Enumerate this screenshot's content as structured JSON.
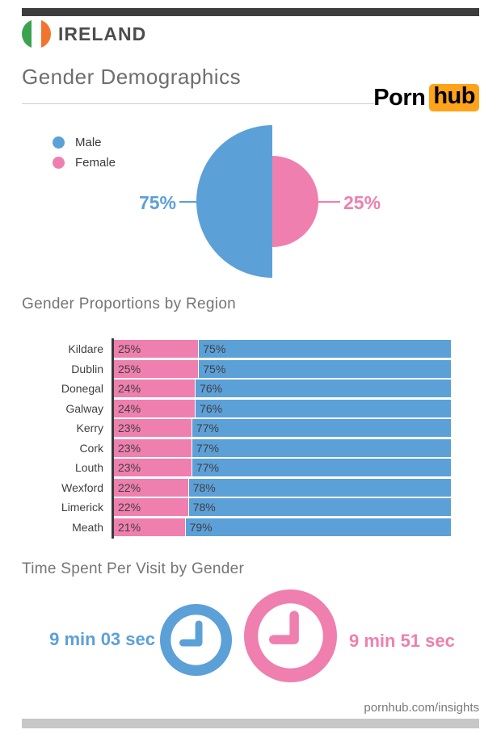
{
  "header": {
    "country": "IRELAND",
    "title": "Gender Demographics",
    "brand": {
      "word1": "Porn",
      "word2": "hub",
      "accent_color": "#FFA31A"
    },
    "flag_colors": [
      "#3DA24E",
      "#FFFFFF",
      "#F1752F"
    ]
  },
  "colors": {
    "male_blue": "#5CA0D8",
    "female_pink": "#EF7FAE",
    "top_bar": "#3D3D3D",
    "bottom_bar": "#C7C7C7",
    "heading_gray": "#757575",
    "text_gray": "#3F3F3F"
  },
  "pie_section": {
    "legend": [
      {
        "label": "Male",
        "color": "#5CA0D8"
      },
      {
        "label": "Female",
        "color": "#EF7FAE"
      }
    ],
    "male_callout": "75%",
    "female_callout": "25%"
  },
  "regions_section": {
    "heading": "Gender Proportions by Region"
  },
  "time_section": {
    "heading": "Time Spent Per Visit by Gender",
    "male_time": "9 min 03 sec",
    "female_time": "9 min 51 sec"
  },
  "footer": {
    "url": "pornhub.com/insights"
  },
  "chart_data": [
    {
      "type": "pie",
      "title": "Gender Demographics",
      "labels": [
        "Male",
        "Female"
      ],
      "values": [
        75,
        25
      ],
      "unit": "%",
      "colors": [
        "#5CA0D8",
        "#EF7FAE"
      ],
      "layout_hint": "male drawn as large left half-disc, female as smaller right half-disc, callout labels 75% left and 25% right"
    },
    {
      "type": "bar",
      "title": "Gender Proportions by Region",
      "orientation": "horizontal",
      "stacked": true,
      "unit": "%",
      "xlim": [
        0,
        100
      ],
      "categories": [
        "Kildare",
        "Dublin",
        "Donegal",
        "Galway",
        "Kerry",
        "Cork",
        "Louth",
        "Wexford",
        "Limerick",
        "Meath"
      ],
      "series": [
        {
          "name": "Female",
          "color": "#EF7FAE",
          "values": [
            25,
            25,
            24,
            24,
            23,
            23,
            23,
            22,
            22,
            21
          ]
        },
        {
          "name": "Male",
          "color": "#5CA0D8",
          "values": [
            75,
            75,
            76,
            76,
            77,
            77,
            77,
            78,
            78,
            79
          ]
        }
      ],
      "value_labels": "inside left edge of each segment"
    },
    {
      "type": "icon-stat",
      "title": "Time Spent Per Visit by Gender",
      "items": [
        {
          "label": "Male",
          "icon": "clock",
          "color": "#5CA0D8",
          "value": "9 min 03 sec"
        },
        {
          "label": "Female",
          "icon": "clock",
          "color": "#EF7FAE",
          "value": "9 min 51 sec"
        }
      ]
    }
  ]
}
